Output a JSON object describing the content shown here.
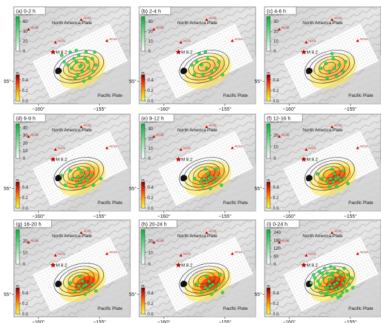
{
  "chart_data": [
    {
      "type": "heatmap",
      "title": "(a) 0-2 h",
      "colorbar_number": {
        "label": "Number",
        "ticks": [
          "0",
          "20",
          "40",
          "60"
        ],
        "range": [
          0,
          70
        ]
      },
      "colorbar_slip": {
        "label": "m",
        "ticks": [
          "0.0",
          "0.2",
          "0.4"
        ],
        "range": [
          0,
          0.5
        ]
      },
      "plate_top": "North America Plate",
      "plate_bottom": "Pacific Plate",
      "mainshock": "M 8.2",
      "stations": [
        "AC01",
        "AC02",
        "AC13",
        "AC06"
      ],
      "x_ticks": [
        "−160°",
        "−155°"
      ],
      "y_ticks": [
        "55°"
      ],
      "slip_intensity": 0.25,
      "aftershocks": [
        [
          -156.9,
          55.6
        ],
        [
          -157.3,
          55.4
        ],
        [
          -156.5,
          55.5
        ],
        [
          -156.2,
          55.7
        ],
        [
          -157.6,
          55.5
        ],
        [
          -156.8,
          55.2
        ],
        [
          -155.9,
          55.4
        ],
        [
          -156.4,
          55.3
        ],
        [
          -157.1,
          55.7
        ],
        [
          -156.0,
          55.6
        ],
        [
          -155.5,
          55.3
        ],
        [
          -157.9,
          55.6
        ],
        [
          -156.7,
          55.8
        ],
        [
          -155.8,
          55.1
        ],
        [
          -156.3,
          55.0
        ],
        [
          -157.4,
          55.9
        ],
        [
          -155.3,
          55.5
        ],
        [
          -156.6,
          55.45
        ],
        [
          -157.0,
          55.1
        ],
        [
          -155.6,
          55.7
        ],
        [
          -156.1,
          55.9
        ],
        [
          -158.1,
          55.8
        ],
        [
          -155.4,
          55.9
        ],
        [
          -156.9,
          55.95
        ]
      ]
    },
    {
      "type": "heatmap",
      "title": "(b) 2-4 h",
      "colorbar_number": {
        "label": "Number",
        "ticks": [
          "0",
          "10",
          "20",
          "30"
        ],
        "range": [
          0,
          35
        ]
      },
      "colorbar_slip": {
        "label": "m",
        "ticks": [
          "0.0",
          "0.2",
          "0.4"
        ],
        "range": [
          0,
          0.5
        ]
      },
      "plate_top": "North America Plate",
      "plate_bottom": "Pacific Plate",
      "mainshock": "M 8.2",
      "stations": [
        "AC01",
        "AC02",
        "AC13",
        "AC06"
      ],
      "x_ticks": [
        "−160°",
        "−155°"
      ],
      "y_ticks": [
        "55°"
      ],
      "slip_intensity": 0.3,
      "aftershocks": [
        [
          -156.5,
          55.4
        ],
        [
          -156.9,
          55.5
        ],
        [
          -156.1,
          55.3
        ],
        [
          -157.3,
          55.6
        ],
        [
          -156.4,
          55.7
        ],
        [
          -155.7,
          55.4
        ],
        [
          -156.8,
          55.2
        ],
        [
          -157.7,
          55.5
        ],
        [
          -156.2,
          55.1
        ],
        [
          -155.5,
          55.6
        ],
        [
          -157.1,
          55.85
        ],
        [
          -156.6,
          55.9
        ],
        [
          -155.2,
          55.2
        ],
        [
          -157.5,
          55.2
        ]
      ]
    },
    {
      "type": "heatmap",
      "title": "(c) 4-6 h",
      "colorbar_number": {
        "label": "Number",
        "ticks": [
          "0",
          "10",
          "20",
          "30"
        ],
        "range": [
          0,
          35
        ]
      },
      "colorbar_slip": {
        "label": "m",
        "ticks": [
          "0.0",
          "0.2",
          "0.4"
        ],
        "range": [
          0,
          0.5
        ]
      },
      "plate_top": "North America Plate",
      "plate_bottom": "Pacific Plate",
      "mainshock": "M 8.2",
      "stations": [
        "AC01",
        "AC02",
        "AC13",
        "AC06"
      ],
      "x_ticks": [
        "−160°",
        "−155°"
      ],
      "y_ticks": [
        "55°"
      ],
      "slip_intensity": 0.35,
      "aftershocks": [
        [
          -156.3,
          55.4
        ],
        [
          -156.7,
          55.3
        ],
        [
          -155.9,
          55.5
        ],
        [
          -157.0,
          55.55
        ],
        [
          -156.4,
          55.7
        ],
        [
          -155.6,
          55.3
        ],
        [
          -156.9,
          55.1
        ],
        [
          -156.1,
          55.15
        ],
        [
          -155.4,
          55.6
        ],
        [
          -157.4,
          55.4
        ],
        [
          -156.5,
          55.85
        ]
      ]
    },
    {
      "type": "heatmap",
      "title": "(d) 6-9 h",
      "colorbar_number": {
        "label": "Number",
        "ticks": [
          "0",
          "10",
          "20",
          "30",
          "40"
        ],
        "range": [
          0,
          45
        ]
      },
      "colorbar_slip": {
        "label": "m",
        "ticks": [
          "0.0",
          "0.2",
          "0.4"
        ],
        "range": [
          0,
          0.5
        ]
      },
      "plate_top": "North America Plate",
      "plate_bottom": "Pacific Plate",
      "mainshock": "M 8.2",
      "stations": [
        "AC01",
        "AC02",
        "AC13",
        "AC06"
      ],
      "x_ticks": [
        "−160°",
        "−155°"
      ],
      "y_ticks": [
        "55°"
      ],
      "slip_intensity": 0.6,
      "aftershocks": [
        [
          -156.4,
          55.3
        ],
        [
          -156.6,
          55.2
        ],
        [
          -156.2,
          55.4
        ],
        [
          -156.8,
          55.35
        ],
        [
          -156.0,
          55.25
        ],
        [
          -156.5,
          55.5
        ],
        [
          -157.2,
          55.3
        ],
        [
          -155.7,
          55.4
        ],
        [
          -156.9,
          55.1
        ],
        [
          -156.3,
          55.05
        ],
        [
          -157.8,
          55.1
        ],
        [
          -155.5,
          55.1
        ],
        [
          -156.7,
          55.6
        ],
        [
          -157.4,
          55.55
        ],
        [
          -155.9,
          55.6
        ],
        [
          -158.1,
          55.4
        ],
        [
          -154.9,
          55.3
        ]
      ]
    },
    {
      "type": "heatmap",
      "title": "(e) 9-12 h",
      "colorbar_number": {
        "label": "Number",
        "ticks": [
          "0",
          "10",
          "20",
          "30"
        ],
        "range": [
          0,
          35
        ]
      },
      "colorbar_slip": {
        "label": "m",
        "ticks": [
          "0.0",
          "0.2",
          "0.4"
        ],
        "range": [
          0,
          0.5
        ]
      },
      "plate_top": "North America Plate",
      "plate_bottom": "Pacific Plate",
      "mainshock": "M 8.2",
      "stations": [
        "AC01",
        "AC02",
        "AC13",
        "AC06"
      ],
      "x_ticks": [
        "−160°",
        "−155°"
      ],
      "y_ticks": [
        "55°"
      ],
      "slip_intensity": 0.7,
      "aftershocks": [
        [
          -156.3,
          55.3
        ],
        [
          -156.5,
          55.2
        ],
        [
          -156.1,
          55.35
        ],
        [
          -156.7,
          55.3
        ],
        [
          -155.9,
          55.2
        ],
        [
          -156.4,
          55.45
        ],
        [
          -157.0,
          55.2
        ],
        [
          -155.6,
          55.35
        ],
        [
          -156.8,
          55.05
        ],
        [
          -156.2,
          55.0
        ],
        [
          -157.5,
          55.3
        ],
        [
          -155.3,
          55.1
        ],
        [
          -156.6,
          55.6
        ],
        [
          -155.7,
          55.6
        ]
      ]
    },
    {
      "type": "heatmap",
      "title": "(f) 12-16 h",
      "colorbar_number": {
        "label": "Number",
        "ticks": [
          "0",
          "10",
          "20"
        ],
        "range": [
          0,
          30
        ]
      },
      "colorbar_slip": {
        "label": "m",
        "ticks": [
          "0.0",
          "0.2",
          "0.4"
        ],
        "range": [
          0,
          0.5
        ]
      },
      "plate_top": "North America Plate",
      "plate_bottom": "Pacific Plate",
      "mainshock": "M 8.2",
      "stations": [
        "AC01",
        "AC02",
        "AC13",
        "AC06"
      ],
      "x_ticks": [
        "−160°",
        "−155°"
      ],
      "y_ticks": [
        "55°"
      ],
      "slip_intensity": 0.8,
      "aftershocks": [
        [
          -156.2,
          55.3
        ],
        [
          -156.4,
          55.2
        ],
        [
          -156.0,
          55.35
        ],
        [
          -156.6,
          55.3
        ],
        [
          -155.8,
          55.25
        ],
        [
          -156.3,
          55.45
        ],
        [
          -156.9,
          55.2
        ],
        [
          -155.5,
          55.3
        ],
        [
          -156.7,
          55.05
        ],
        [
          -156.1,
          55.05
        ],
        [
          -157.3,
          55.3
        ],
        [
          -155.2,
          55.15
        ],
        [
          -156.5,
          55.6
        ],
        [
          -155.6,
          55.55
        ],
        [
          -157.7,
          55.45
        ]
      ]
    },
    {
      "type": "heatmap",
      "title": "(g) 16-20 h",
      "colorbar_number": {
        "label": "Number",
        "ticks": [
          "0",
          "10",
          "20"
        ],
        "range": [
          0,
          30
        ]
      },
      "colorbar_slip": {
        "label": "m",
        "ticks": [
          "0.0",
          "0.2",
          "0.4"
        ],
        "range": [
          0,
          0.5
        ]
      },
      "plate_top": "North America Plate",
      "plate_bottom": "Pacific Plate",
      "mainshock": "M 8.2",
      "stations": [
        "AC01",
        "AC02",
        "AC13",
        "AC06"
      ],
      "x_ticks": [
        "−160°",
        "−155°"
      ],
      "y_ticks": [
        "55°"
      ],
      "slip_intensity": 0.9,
      "aftershocks": [
        [
          -156.3,
          55.25
        ],
        [
          -156.5,
          55.15
        ],
        [
          -156.1,
          55.3
        ],
        [
          -156.7,
          55.25
        ],
        [
          -155.9,
          55.15
        ],
        [
          -156.4,
          55.4
        ],
        [
          -157.0,
          55.1
        ],
        [
          -155.6,
          55.3
        ],
        [
          -156.2,
          55.0
        ],
        [
          -157.4,
          55.35
        ],
        [
          -155.3,
          55.1
        ],
        [
          -156.6,
          55.55
        ]
      ]
    },
    {
      "type": "heatmap",
      "title": "(h) 20-24 h",
      "colorbar_number": {
        "label": "Number",
        "ticks": [
          "0",
          "10",
          "20"
        ],
        "range": [
          0,
          30
        ]
      },
      "colorbar_slip": {
        "label": "m",
        "ticks": [
          "0.0",
          "0.2",
          "0.4"
        ],
        "range": [
          0,
          0.5
        ]
      },
      "plate_top": "North America Plate",
      "plate_bottom": "Pacific Plate",
      "mainshock": "M 8.2",
      "stations": [
        "AC01",
        "AC02",
        "AC13",
        "AC06"
      ],
      "x_ticks": [
        "−160°",
        "−155°"
      ],
      "y_ticks": [
        "55°"
      ],
      "slip_intensity": 0.95,
      "aftershocks": [
        [
          -156.2,
          55.25
        ],
        [
          -156.4,
          55.15
        ],
        [
          -156.0,
          55.3
        ],
        [
          -156.6,
          55.2
        ],
        [
          -155.8,
          55.15
        ],
        [
          -156.3,
          55.4
        ],
        [
          -156.9,
          55.05
        ],
        [
          -155.5,
          55.3
        ],
        [
          -156.1,
          55.0
        ],
        [
          -157.3,
          55.3
        ],
        [
          -155.2,
          55.05
        ],
        [
          -156.5,
          55.55
        ],
        [
          -155.4,
          55.6
        ]
      ]
    },
    {
      "type": "heatmap",
      "title": "(i) 0-24 h",
      "colorbar_number": {
        "label": "Number",
        "ticks": [
          "0",
          "60",
          "120",
          "180",
          "240"
        ],
        "range": [
          0,
          260
        ]
      },
      "colorbar_slip": {
        "label": "m",
        "ticks": [
          "0.0",
          "0.2",
          "0.4"
        ],
        "range": [
          0,
          0.5
        ]
      },
      "plate_top": "North America Plate",
      "plate_bottom": "Pacific Plate",
      "mainshock": "M 8.2",
      "stations": [
        "AC01",
        "AC02",
        "AC13",
        "AC06"
      ],
      "x_ticks": [
        "−160°",
        "−155°"
      ],
      "y_ticks": [
        "55°"
      ],
      "slip_intensity": 0.95,
      "aftershocks": [
        [
          -156.3,
          55.3
        ],
        [
          -156.5,
          55.2
        ],
        [
          -156.1,
          55.35
        ],
        [
          -156.7,
          55.3
        ],
        [
          -155.9,
          55.2
        ],
        [
          -156.4,
          55.5
        ],
        [
          -157.0,
          55.2
        ],
        [
          -155.6,
          55.35
        ],
        [
          -156.8,
          55.05
        ],
        [
          -156.2,
          55.0
        ],
        [
          -157.5,
          55.3
        ],
        [
          -155.3,
          55.1
        ],
        [
          -156.6,
          55.6
        ],
        [
          -155.7,
          55.6
        ],
        [
          -157.2,
          55.5
        ],
        [
          -156.9,
          55.65
        ],
        [
          -155.4,
          55.45
        ],
        [
          -157.8,
          55.2
        ],
        [
          -156.0,
          55.7
        ],
        [
          -155.1,
          55.3
        ],
        [
          -157.4,
          55.05
        ],
        [
          -156.5,
          54.95
        ],
        [
          -155.8,
          54.95
        ],
        [
          -157.9,
          55.5
        ],
        [
          -154.9,
          55.5
        ],
        [
          -156.3,
          55.8
        ],
        [
          -157.1,
          55.8
        ],
        [
          -155.5,
          55.8
        ],
        [
          -158.2,
          55.35
        ],
        [
          -156.7,
          55.45
        ],
        [
          -155.95,
          55.45
        ],
        [
          -157.3,
          55.65
        ],
        [
          -156.15,
          55.15
        ],
        [
          -156.85,
          55.2
        ],
        [
          -155.45,
          55.2
        ],
        [
          -157.65,
          55.4
        ],
        [
          -156.45,
          55.65
        ],
        [
          -155.2,
          55.6
        ],
        [
          -157.0,
          55.0
        ],
        [
          -156.0,
          54.9
        ],
        [
          -155.65,
          55.05
        ],
        [
          -157.55,
          55.7
        ],
        [
          -158.0,
          55.6
        ],
        [
          -154.8,
          55.2
        ],
        [
          -156.6,
          55.85
        ]
      ]
    }
  ]
}
